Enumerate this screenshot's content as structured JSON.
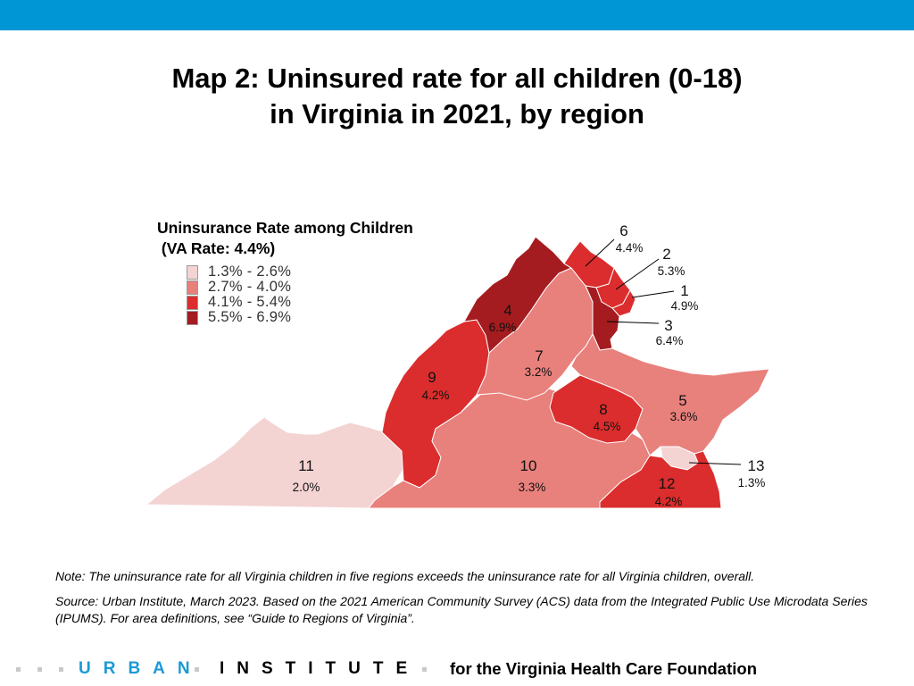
{
  "slide": {
    "title_line1": "Map 2: Uninsured rate for all children (0-18)",
    "title_line2": "in Virginia in 2021, by region",
    "top_bar_color": "#0096d6"
  },
  "legend": {
    "title_line1": "Uninsurance Rate among Children",
    "title_line2": " (VA Rate: 4.4%)",
    "items": [
      {
        "label": "1.3% - 2.6%",
        "color": "#f4d3d3"
      },
      {
        "label": "2.7% - 4.0%",
        "color": "#e8807c"
      },
      {
        "label": "4.1% - 5.4%",
        "color": "#db2d2d"
      },
      {
        "label": "5.5% - 6.9%",
        "color": "#a41c1f"
      }
    ]
  },
  "regions": [
    {
      "number": "1",
      "rate": "4.9%"
    },
    {
      "number": "2",
      "rate": "5.3%"
    },
    {
      "number": "3",
      "rate": "6.4%"
    },
    {
      "number": "4",
      "rate": "6.9%"
    },
    {
      "number": "5",
      "rate": "3.6%"
    },
    {
      "number": "6",
      "rate": "4.4%"
    },
    {
      "number": "7",
      "rate": "3.2%"
    },
    {
      "number": "8",
      "rate": "4.5%"
    },
    {
      "number": "9",
      "rate": "4.2%"
    },
    {
      "number": "10",
      "rate": "3.3%"
    },
    {
      "number": "11",
      "rate": "2.0%"
    },
    {
      "number": "12",
      "rate": "4.2%"
    },
    {
      "number": "13",
      "rate": "1.3%"
    }
  ],
  "notes": {
    "note": "Note: The uninsurance rate for all Virginia children in five regions exceeds the uninsurance rate for all Virginia children, overall.",
    "source": "Source: Urban Institute, March 2023. Based on the 2021 American Community Survey (ACS) data from the Integrated Public Use Microdata Series (IPUMS). For area definitions, see “Guide to Regions of Virginia”."
  },
  "footer": {
    "brand_urban": "URBAN",
    "brand_institute": "INSTITUTE",
    "credit": "for the Virginia Health Care Foundation",
    "brand_color": "#1b9ad6"
  }
}
